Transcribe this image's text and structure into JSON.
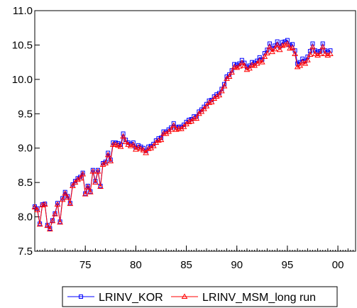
{
  "chart_data": {
    "type": "line",
    "title": "",
    "xlabel": "",
    "ylabel": "",
    "x_start": 1970.0,
    "x_step": 0.25,
    "xlim": [
      1970.0,
      2001.75
    ],
    "ylim": [
      7.5,
      11.0
    ],
    "x_ticks": [
      1975,
      1980,
      1985,
      1990,
      1995,
      2000
    ],
    "x_tick_labels": [
      "75",
      "80",
      "85",
      "90",
      "95",
      "00"
    ],
    "y_ticks": [
      7.5,
      8.0,
      8.5,
      9.0,
      9.5,
      10.0,
      10.5,
      11.0
    ],
    "y_tick_labels": [
      "7.5",
      "8.0",
      "8.5",
      "9.0",
      "9.5",
      "10.0",
      "10.5",
      "11.0"
    ],
    "grid": false,
    "legend_position": "bottom-center",
    "series": [
      {
        "name": "LRINV_KOR",
        "color": "#0000ff",
        "marker": "square",
        "values": [
          8.15,
          8.12,
          7.9,
          8.18,
          8.19,
          7.88,
          7.83,
          7.95,
          8.05,
          8.2,
          7.93,
          8.27,
          8.36,
          8.3,
          8.2,
          8.47,
          8.52,
          8.56,
          8.58,
          8.64,
          8.34,
          8.45,
          8.37,
          8.68,
          8.52,
          8.68,
          8.45,
          8.78,
          8.8,
          8.93,
          8.83,
          9.08,
          9.08,
          9.07,
          9.05,
          9.21,
          9.12,
          9.08,
          9.06,
          9.08,
          9.01,
          9.04,
          9.02,
          9.0,
          8.96,
          9.02,
          9.03,
          9.06,
          9.11,
          9.14,
          9.15,
          9.24,
          9.24,
          9.27,
          9.3,
          9.36,
          9.3,
          9.31,
          9.31,
          9.34,
          9.38,
          9.41,
          9.42,
          9.46,
          9.46,
          9.53,
          9.56,
          9.6,
          9.64,
          9.69,
          9.7,
          9.75,
          9.78,
          9.8,
          9.86,
          9.93,
          10.04,
          10.07,
          10.13,
          10.22,
          10.21,
          10.23,
          10.28,
          10.24,
          10.18,
          10.2,
          10.25,
          10.24,
          10.27,
          10.32,
          10.29,
          10.38,
          10.43,
          10.52,
          10.45,
          10.49,
          10.55,
          10.48,
          10.54,
          10.55,
          10.57,
          10.5,
          10.51,
          10.42,
          10.23,
          10.25,
          10.3,
          10.27,
          10.33,
          10.41,
          10.52,
          10.42,
          10.4,
          10.41,
          10.52,
          10.42,
          10.4,
          10.42
        ]
      },
      {
        "name": "LRINV_MSM_long run",
        "color": "#ff0000",
        "marker": "triangle",
        "values": [
          8.14,
          8.1,
          7.89,
          8.17,
          8.18,
          7.87,
          7.82,
          7.94,
          8.04,
          8.18,
          7.92,
          8.25,
          8.34,
          8.28,
          8.19,
          8.45,
          8.5,
          8.54,
          8.56,
          8.62,
          8.33,
          8.43,
          8.36,
          8.66,
          8.5,
          8.66,
          8.44,
          8.76,
          8.78,
          8.9,
          8.81,
          9.05,
          9.05,
          9.04,
          9.02,
          9.17,
          9.09,
          9.05,
          9.03,
          9.05,
          8.98,
          9.01,
          8.99,
          8.97,
          8.93,
          8.99,
          9.0,
          9.03,
          9.08,
          9.11,
          9.12,
          9.21,
          9.21,
          9.24,
          9.27,
          9.33,
          9.27,
          9.28,
          9.28,
          9.31,
          9.35,
          9.38,
          9.39,
          9.43,
          9.43,
          9.5,
          9.53,
          9.57,
          9.61,
          9.66,
          9.67,
          9.72,
          9.75,
          9.77,
          9.83,
          9.9,
          10.01,
          10.04,
          10.1,
          10.18,
          10.17,
          10.19,
          10.24,
          10.2,
          10.14,
          10.16,
          10.21,
          10.2,
          10.23,
          10.27,
          10.25,
          10.33,
          10.38,
          10.47,
          10.4,
          10.44,
          10.5,
          10.43,
          10.49,
          10.5,
          10.52,
          10.45,
          10.46,
          10.37,
          10.18,
          10.2,
          10.25,
          10.23,
          10.28,
          10.36,
          10.47,
          10.37,
          10.35,
          10.37,
          10.47,
          10.37,
          10.35,
          10.37
        ]
      }
    ]
  }
}
